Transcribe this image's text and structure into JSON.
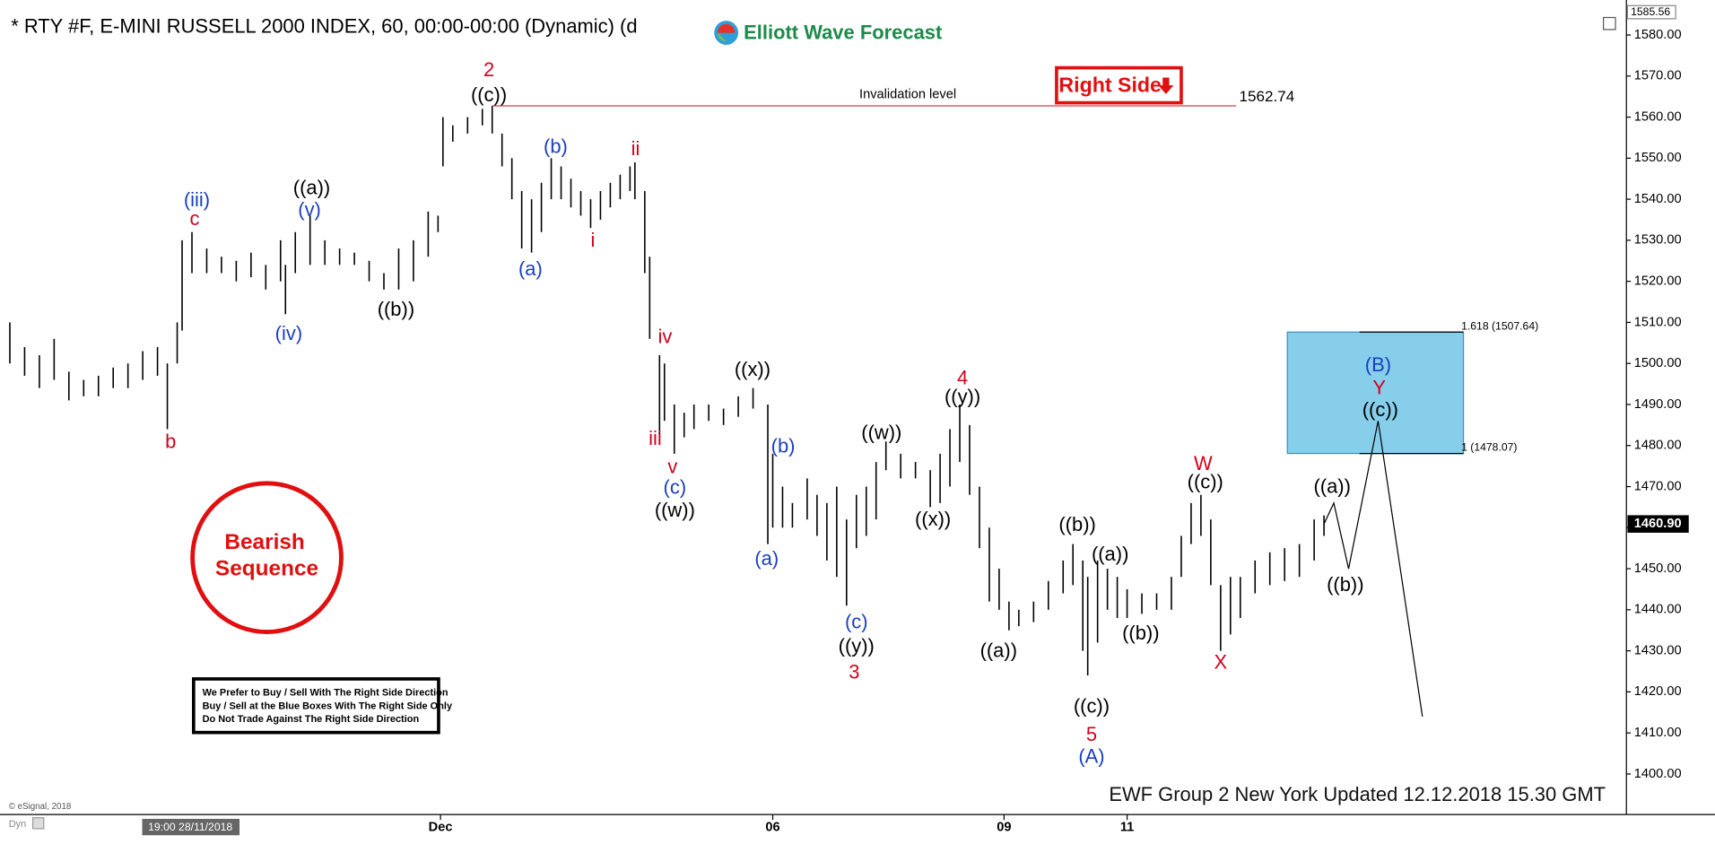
{
  "chart_data": {
    "type": "ohlc",
    "title": "* RTY #F, E-MINI RUSSELL 2000 INDEX, 60, 00:00-00:00 (Dynamic) (d",
    "logo": "Elliott Wave Forecast",
    "color": "#000000",
    "xlim": [
      0,
      330
    ],
    "xticks": [
      {
        "value": 89.5,
        "label": "Dec"
      },
      {
        "value": 157,
        "label": "06"
      },
      {
        "value": 204,
        "label": "09"
      },
      {
        "value": 229,
        "label": "11"
      }
    ],
    "ylim": [
      1390,
      1586
    ],
    "yticks": [
      {
        "value": 1400,
        "label": "1400.00"
      },
      {
        "value": 1410,
        "label": "1410.00"
      },
      {
        "value": 1420,
        "label": "1420.00"
      },
      {
        "value": 1430,
        "label": "1430.00"
      },
      {
        "value": 1440,
        "label": "1440.00"
      },
      {
        "value": 1450,
        "label": "1450.00"
      },
      {
        "value": 1460,
        "label": "1460.00"
      },
      {
        "value": 1470,
        "label": "1470.00"
      },
      {
        "value": 1480,
        "label": "1480.00"
      },
      {
        "value": 1490,
        "label": "1490.00"
      },
      {
        "value": 1500,
        "label": "1500.00"
      },
      {
        "value": 1510,
        "label": "1510.00"
      },
      {
        "value": 1520,
        "label": "1520.00"
      },
      {
        "value": 1530,
        "label": "1530.00"
      },
      {
        "value": 1540,
        "label": "1540.00"
      },
      {
        "value": 1550,
        "label": "1550.00"
      },
      {
        "value": 1560,
        "label": "1560.00"
      },
      {
        "value": 1570,
        "label": "1570.00"
      },
      {
        "value": 1580,
        "label": "1580.00"
      }
    ],
    "x": [
      2,
      5,
      8,
      11,
      14,
      17,
      20,
      23,
      26,
      29,
      32,
      34,
      36,
      37,
      39,
      42,
      45,
      48,
      51,
      54,
      57,
      58,
      60,
      63,
      66,
      69,
      72,
      75,
      78,
      81,
      84,
      87,
      89,
      90,
      92,
      95,
      98,
      100,
      102,
      104,
      106,
      108,
      110,
      112,
      114,
      116,
      118,
      120,
      122,
      124,
      126,
      128,
      129,
      131,
      132,
      134,
      135,
      137,
      139,
      141,
      144,
      147,
      150,
      153,
      156,
      157,
      159,
      161,
      164,
      166,
      168,
      170,
      172,
      174,
      176,
      178,
      180,
      183,
      186,
      189,
      191,
      193,
      195,
      197,
      199,
      201,
      203,
      205,
      207,
      210,
      213,
      216,
      218,
      220,
      221,
      223,
      225,
      227,
      229,
      232,
      235,
      238,
      240,
      242,
      244,
      246,
      248,
      250,
      252,
      255,
      258,
      261,
      264,
      267,
      269
    ],
    "high": [
      1510,
      1504,
      1502,
      1506,
      1498,
      1496,
      1497,
      1499,
      1500,
      1503,
      1504,
      1500,
      1510,
      1530,
      1532,
      1528,
      1526,
      1525,
      1527,
      1524,
      1530,
      1524,
      1532,
      1536,
      1530,
      1528,
      1527,
      1525,
      1522,
      1528,
      1530,
      1537,
      1536,
      1560,
      1558,
      1560,
      1562,
      1562.7,
      1556,
      1550,
      1542,
      1540,
      1544,
      1550,
      1548,
      1545,
      1542,
      1540,
      1542,
      1544,
      1546,
      1548,
      1549,
      1542,
      1526,
      1502,
      1500,
      1490,
      1488,
      1490,
      1490,
      1489,
      1492,
      1494,
      1490,
      1478,
      1470,
      1466,
      1472,
      1468,
      1466,
      1470,
      1462,
      1468,
      1470,
      1476,
      1481,
      1478,
      1476,
      1474,
      1478,
      1484,
      1490,
      1485,
      1470,
      1460,
      1450,
      1442,
      1440,
      1442,
      1447,
      1452,
      1456,
      1452,
      1448,
      1452,
      1450,
      1448,
      1445,
      1444,
      1444,
      1448,
      1458,
      1466,
      1468,
      1462,
      1446,
      1448,
      1448,
      1452,
      1454,
      1455,
      1456,
      1462,
      1463
    ],
    "low": [
      1500,
      1497,
      1494,
      1496,
      1491,
      1492,
      1492,
      1494,
      1494,
      1496,
      1497,
      1484,
      1500,
      1508,
      1522,
      1522,
      1522,
      1520,
      1521,
      1518,
      1520,
      1512,
      1522,
      1524,
      1524,
      1524,
      1524,
      1520,
      1518,
      1518,
      1520,
      1526,
      1532,
      1548,
      1554,
      1556,
      1558,
      1556,
      1548,
      1540,
      1528,
      1527,
      1532,
      1540,
      1540,
      1538,
      1536,
      1533,
      1535,
      1538,
      1540,
      1542,
      1540,
      1522,
      1506,
      1482,
      1486,
      1478,
      1482,
      1484,
      1486,
      1485,
      1487,
      1489,
      1456,
      1460,
      1460,
      1460,
      1462,
      1458,
      1452,
      1448,
      1441,
      1455,
      1458,
      1462,
      1474,
      1472,
      1472,
      1465,
      1466,
      1470,
      1476,
      1468,
      1455,
      1442,
      1440,
      1435,
      1436,
      1437,
      1440,
      1444,
      1446,
      1430,
      1424,
      1432,
      1440,
      1438,
      1438,
      1439,
      1440,
      1440,
      1448,
      1456,
      1458,
      1446,
      1430,
      1434,
      1438,
      1444,
      1446,
      1447,
      1448,
      1452,
      1458
    ],
    "projection": {
      "x": [
        269,
        271,
        274,
        280,
        289
      ],
      "values": [
        1460.9,
        1466,
        1450,
        1486,
        1414
      ]
    },
    "invalidation": {
      "value": 1562.74,
      "label": "1562.74",
      "text": "Invalidation level"
    },
    "blue_box": {
      "top": {
        "value": 1507.64,
        "label": "1.618 (1507.64)"
      },
      "bottom": {
        "value": 1478.07,
        "label": "1 (1478.07)"
      },
      "color": "#87ceeb"
    },
    "last_price": {
      "value": 1460.9,
      "label": "1460.90"
    },
    "top_price": {
      "value": 1585.56,
      "label": "1585.56"
    },
    "right_side": "Right Side",
    "bearish": [
      "Bearish",
      "Sequence"
    ],
    "notice": [
      "We Prefer to Buy / Sell With The Right Side Direction",
      "Buy / Sell at the Blue Boxes With The Right Side Only",
      "Do Not Trade Against The Right Side Direction"
    ],
    "footer": "EWF Group 2 New York Updated 12.12.2018 15.30 GMT",
    "copyright": "© eSignal, 2018",
    "cursor_time": "19:00 28/11/2018",
    "dyn": "Dyn",
    "annotations": [
      {
        "text": "2",
        "color": "#d0021b"
      },
      {
        "text": "((c))",
        "color": "#000"
      },
      {
        "text": "(iii)",
        "color": "#1a3fbf"
      },
      {
        "text": "c",
        "color": "#d0021b"
      },
      {
        "text": "((a))",
        "color": "#000"
      },
      {
        "text": "(v)",
        "color": "#1a3fbf"
      },
      {
        "text": "(iv)",
        "color": "#1a3fbf"
      },
      {
        "text": "((b))",
        "color": "#000"
      },
      {
        "text": "b",
        "color": "#d0021b"
      },
      {
        "text": "(a)",
        "color": "#1a3fbf"
      },
      {
        "text": "(b)",
        "color": "#1a3fbf"
      },
      {
        "text": "ii",
        "color": "#d0021b"
      },
      {
        "text": "i",
        "color": "#d0021b"
      },
      {
        "text": "iv",
        "color": "#d0021b"
      },
      {
        "text": "iii",
        "color": "#d0021b"
      },
      {
        "text": "v",
        "color": "#d0021b"
      },
      {
        "text": "(c)",
        "color": "#1a3fbf"
      },
      {
        "text": "((w))",
        "color": "#000"
      },
      {
        "text": "((x))",
        "color": "#000"
      },
      {
        "text": "(b)",
        "color": "#1a3fbf"
      },
      {
        "text": "(a)",
        "color": "#1a3fbf"
      },
      {
        "text": "(c)",
        "color": "#1a3fbf"
      },
      {
        "text": "((y))",
        "color": "#000"
      },
      {
        "text": "3",
        "color": "#d0021b"
      },
      {
        "text": "((w))",
        "color": "#000"
      },
      {
        "text": "4",
        "color": "#d0021b"
      },
      {
        "text": "((y))",
        "color": "#000"
      },
      {
        "text": "((x))",
        "color": "#000"
      },
      {
        "text": "((a))",
        "color": "#000"
      },
      {
        "text": "((b))",
        "color": "#000"
      },
      {
        "text": "((a))",
        "color": "#000"
      },
      {
        "text": "((b))",
        "color": "#000"
      },
      {
        "text": "((c))",
        "color": "#000"
      },
      {
        "text": "5",
        "color": "#d0021b"
      },
      {
        "text": "(A)",
        "color": "#1a3fbf"
      },
      {
        "text": "W",
        "color": "#d0021b"
      },
      {
        "text": "((c))",
        "color": "#000"
      },
      {
        "text": "X",
        "color": "#d0021b"
      },
      {
        "text": "((a))",
        "color": "#000"
      },
      {
        "text": "((b))",
        "color": "#000"
      },
      {
        "text": "(B)",
        "color": "#1a3fbf"
      },
      {
        "text": "Y",
        "color": "#d0021b"
      },
      {
        "text": "((c))",
        "color": "#000"
      }
    ]
  }
}
